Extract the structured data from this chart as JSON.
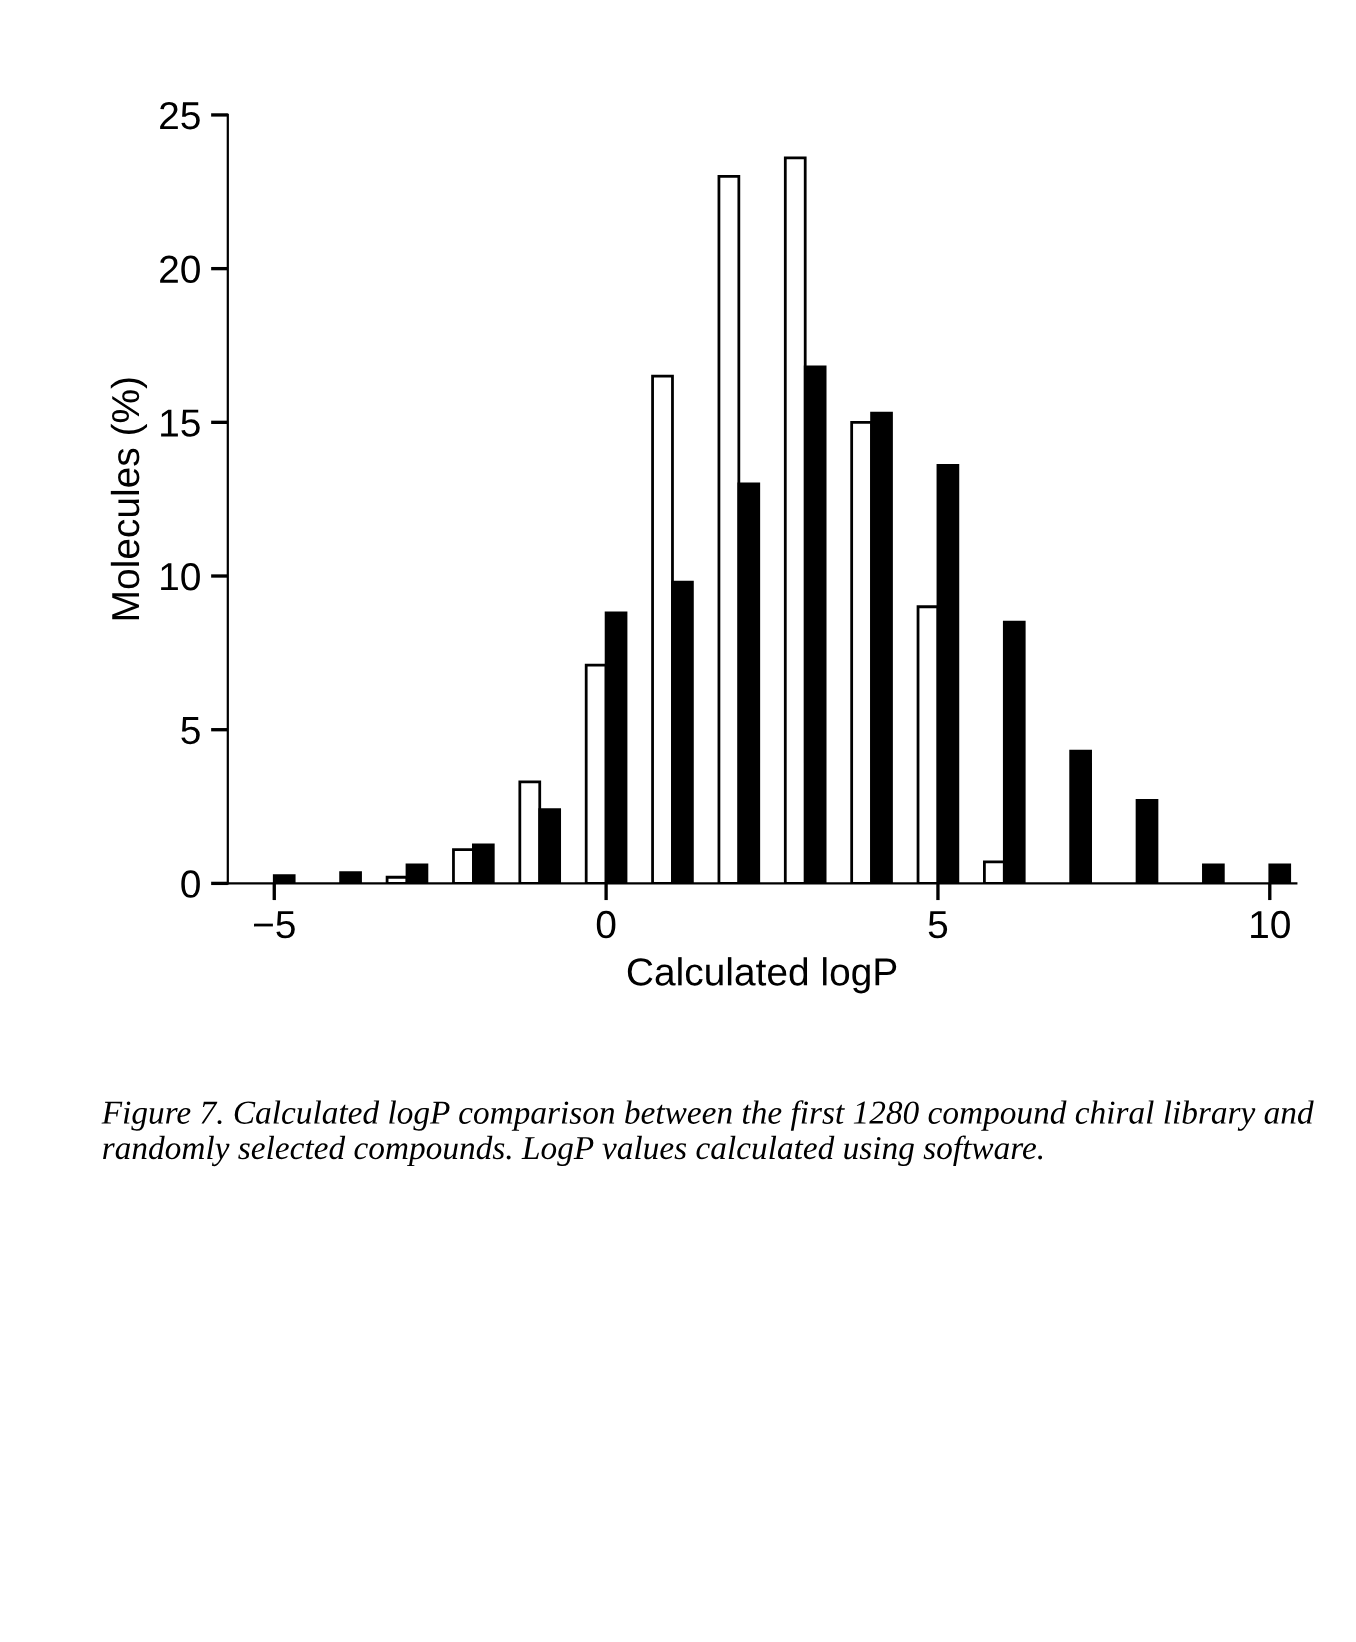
{
  "chart_data": {
    "type": "bar",
    "xlabel": "Calculated logP",
    "ylabel": "Molecules (%)",
    "x": [
      -5,
      -4,
      -3,
      -2,
      -1,
      0,
      1,
      2,
      3,
      4,
      5,
      6,
      7,
      8,
      9,
      10
    ],
    "series": [
      {
        "color": "#ffffff",
        "values": [
          null,
          null,
          0.2,
          1.1,
          3.3,
          7.1,
          16.5,
          23.0,
          23.6,
          15.0,
          9.0,
          0.7,
          null,
          null,
          null,
          null
        ]
      },
      {
        "color": "#000000",
        "values": [
          0.25,
          0.35,
          0.6,
          1.25,
          2.4,
          8.8,
          9.8,
          13.0,
          16.8,
          15.3,
          13.6,
          8.5,
          4.3,
          2.7,
          0.6,
          0.6
        ]
      }
    ],
    "xlim": [
      -5.7,
      10.4
    ],
    "xticks": [
      {
        "value": -5,
        "label": "−5"
      },
      0,
      5,
      10
    ],
    "ylim": [
      0,
      25
    ],
    "yticks": [
      0,
      5,
      10,
      15,
      20,
      25
    ],
    "grid": false,
    "annotations": [
      "Figure 7. Calculated logP comparison between the first 1280 compound chiral library and randomly selected compounds. LogP values calculated using software."
    ]
  }
}
